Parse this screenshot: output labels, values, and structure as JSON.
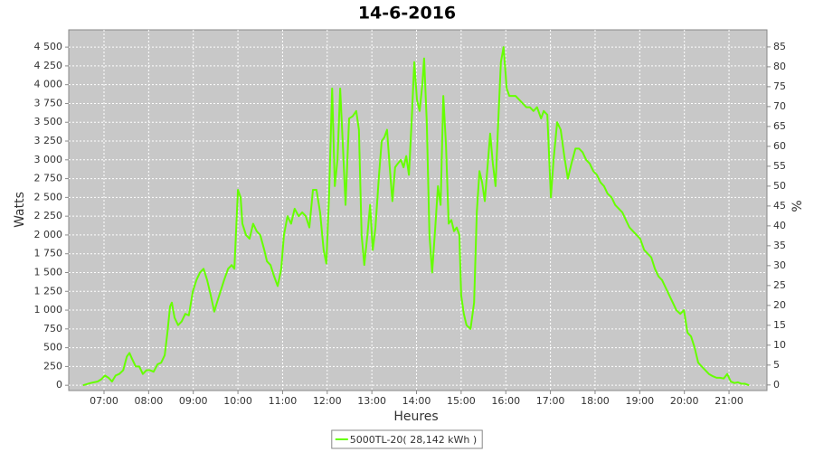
{
  "chart_data": {
    "type": "line",
    "title": "14-6-2016",
    "x_label": "Heures",
    "y_label": "Watts",
    "y2_label": "%",
    "xlim": [
      6.21,
      21.85
    ],
    "xticks": [
      {
        "value": 7,
        "label": "07:00"
      },
      {
        "value": 8,
        "label": "08:00"
      },
      {
        "value": 9,
        "label": "09:00"
      },
      {
        "value": 10,
        "label": "10:00"
      },
      {
        "value": 11,
        "label": "11:00"
      },
      {
        "value": 12,
        "label": "12:00"
      },
      {
        "value": 13,
        "label": "13:00"
      },
      {
        "value": 14,
        "label": "14:00"
      },
      {
        "value": 15,
        "label": "15:00"
      },
      {
        "value": 16,
        "label": "16:00"
      },
      {
        "value": 17,
        "label": "17:00"
      },
      {
        "value": 18,
        "label": "18:00"
      },
      {
        "value": 19,
        "label": "19:00"
      },
      {
        "value": 20,
        "label": "20:00"
      },
      {
        "value": 21,
        "label": "21:00"
      }
    ],
    "ylim": [
      -70,
      4730
    ],
    "yticks": [
      0,
      250,
      500,
      750,
      {
        "value": 1000,
        "label": "1 000"
      },
      {
        "value": 1250,
        "label": "1 250"
      },
      {
        "value": 1500,
        "label": "1 500"
      },
      {
        "value": 1750,
        "label": "1 750"
      },
      {
        "value": 2000,
        "label": "2 000"
      },
      {
        "value": 2250,
        "label": "2 250"
      },
      {
        "value": 2500,
        "label": "2 500"
      },
      {
        "value": 2750,
        "label": "2 750"
      },
      {
        "value": 3000,
        "label": "3 000"
      },
      {
        "value": 3250,
        "label": "3 250"
      },
      {
        "value": 3500,
        "label": "3 500"
      },
      {
        "value": 3750,
        "label": "3 750"
      },
      {
        "value": 4000,
        "label": "4 000"
      },
      {
        "value": 4250,
        "label": "4 250"
      },
      {
        "value": 4500,
        "label": "4 500"
      }
    ],
    "y2lim": [
      -1.4,
      89.3
    ],
    "y2ticks": [
      0,
      5,
      10,
      15,
      20,
      25,
      30,
      35,
      40,
      45,
      50,
      55,
      60,
      65,
      70,
      75,
      80,
      85
    ],
    "grid": true,
    "background": "#c8c8c8",
    "legend": "bottom",
    "x": [
      6.53,
      6.7,
      6.86,
      6.94,
      7.02,
      7.1,
      7.18,
      7.26,
      7.34,
      7.43,
      7.51,
      7.57,
      7.63,
      7.71,
      7.79,
      7.87,
      7.95,
      8.03,
      8.11,
      8.2,
      8.28,
      8.36,
      8.42,
      8.48,
      8.52,
      8.58,
      8.66,
      8.74,
      8.82,
      8.9,
      8.99,
      9.07,
      9.15,
      9.23,
      9.31,
      9.39,
      9.47,
      9.53,
      9.61,
      9.69,
      9.78,
      9.86,
      9.92,
      10.0,
      10.06,
      10.1,
      10.18,
      10.26,
      10.34,
      10.42,
      10.5,
      10.59,
      10.65,
      10.73,
      10.81,
      10.89,
      10.97,
      11.03,
      11.11,
      11.19,
      11.27,
      11.36,
      11.44,
      11.52,
      11.6,
      11.68,
      11.76,
      11.84,
      11.92,
      11.98,
      12.04,
      12.11,
      12.17,
      12.23,
      12.29,
      12.35,
      12.41,
      12.49,
      12.57,
      12.65,
      12.71,
      12.77,
      12.83,
      12.9,
      12.96,
      13.02,
      13.08,
      13.16,
      13.22,
      13.28,
      13.34,
      13.4,
      13.46,
      13.52,
      13.58,
      13.65,
      13.71,
      13.77,
      13.83,
      13.89,
      13.95,
      14.01,
      14.07,
      14.13,
      14.17,
      14.23,
      14.29,
      14.35,
      14.42,
      14.48,
      14.54,
      14.6,
      14.66,
      14.72,
      14.78,
      14.84,
      14.9,
      14.96,
      15.0,
      15.06,
      15.12,
      15.21,
      15.29,
      15.35,
      15.41,
      15.47,
      15.53,
      15.59,
      15.65,
      15.71,
      15.77,
      15.83,
      15.89,
      15.95,
      16.02,
      16.08,
      16.14,
      16.22,
      16.3,
      16.38,
      16.46,
      16.54,
      16.62,
      16.7,
      16.79,
      16.85,
      16.93,
      17.01,
      17.07,
      17.15,
      17.23,
      17.31,
      17.39,
      17.47,
      17.56,
      17.64,
      17.72,
      17.8,
      17.88,
      17.96,
      18.04,
      18.12,
      18.2,
      18.28,
      18.37,
      18.45,
      18.53,
      18.61,
      18.69,
      18.77,
      18.85,
      18.93,
      19.01,
      19.1,
      19.18,
      19.26,
      19.34,
      19.42,
      19.5,
      19.58,
      19.66,
      19.74,
      19.82,
      19.91,
      19.99,
      20.07,
      20.15,
      20.23,
      20.31,
      20.39,
      20.47,
      20.55,
      20.64,
      20.72,
      20.8,
      20.88,
      20.96,
      21.04,
      21.12,
      21.2,
      21.28,
      21.36,
      21.45
    ],
    "series": [
      {
        "name": "5000TL-20( 28,142 kWh )",
        "color": "#66ff00",
        "values": [
          0,
          30,
          50,
          80,
          130,
          100,
          50,
          130,
          150,
          200,
          380,
          430,
          350,
          250,
          250,
          150,
          200,
          200,
          180,
          280,
          300,
          400,
          700,
          1050,
          1100,
          900,
          800,
          850,
          950,
          930,
          1250,
          1400,
          1500,
          1550,
          1400,
          1200,
          980,
          1100,
          1250,
          1400,
          1550,
          1600,
          1550,
          2600,
          2500,
          2150,
          2000,
          1950,
          2150,
          2050,
          2000,
          1800,
          1650,
          1600,
          1450,
          1320,
          1550,
          2000,
          2250,
          2150,
          2350,
          2250,
          2300,
          2250,
          2100,
          2600,
          2600,
          2300,
          1800,
          1620,
          2500,
          3950,
          2650,
          3000,
          3950,
          3200,
          2400,
          3550,
          3580,
          3650,
          3400,
          2000,
          1600,
          2000,
          2400,
          1800,
          2100,
          2800,
          3250,
          3300,
          3400,
          2900,
          2450,
          2900,
          2950,
          3000,
          2900,
          3050,
          2800,
          3500,
          4300,
          3800,
          3650,
          4000,
          4350,
          3500,
          2000,
          1500,
          2100,
          2650,
          2400,
          3850,
          3200,
          2150,
          2200,
          2050,
          2100,
          2000,
          1200,
          950,
          800,
          750,
          1100,
          2300,
          2850,
          2700,
          2450,
          2900,
          3350,
          2950,
          2650,
          3500,
          4300,
          4500,
          3950,
          3850,
          3850,
          3850,
          3800,
          3750,
          3700,
          3700,
          3650,
          3700,
          3550,
          3650,
          3600,
          2500,
          3000,
          3500,
          3400,
          3050,
          2750,
          2950,
          3150,
          3150,
          3100,
          3000,
          2950,
          2850,
          2800,
          2700,
          2650,
          2550,
          2500,
          2400,
          2350,
          2300,
          2200,
          2100,
          2050,
          2000,
          1950,
          1800,
          1750,
          1700,
          1550,
          1450,
          1400,
          1300,
          1200,
          1100,
          1000,
          950,
          1000,
          700,
          650,
          500,
          300,
          250,
          200,
          150,
          120,
          100,
          100,
          90,
          150,
          50,
          30,
          40,
          20,
          20,
          0
        ]
      }
    ]
  }
}
